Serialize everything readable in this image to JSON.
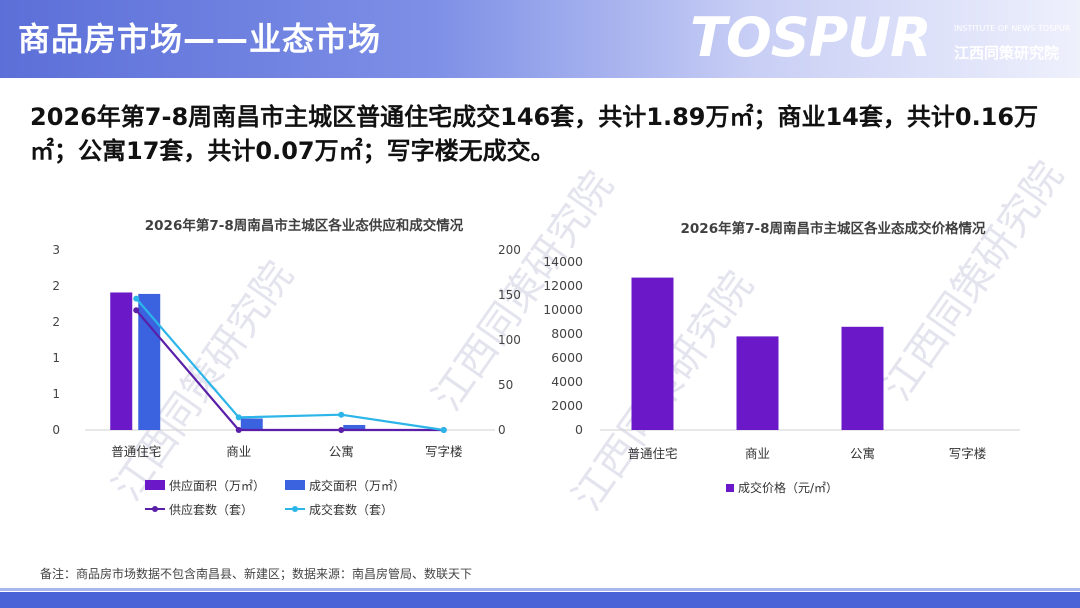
{
  "header": {
    "title": "商品房市场——业态市场",
    "logo_text": "TOSPUR",
    "logo_en": "INSTITUTE OF NEWS TOSPUR",
    "logo_cn": "江西同策研究院"
  },
  "headline": "2026年第7-8周南昌市主城区普通住宅成交146套，共计1.89万㎡；商业14套，共计0.16万㎡；公寓17套，共计0.07万㎡；写字楼无成交。",
  "footnote": "备注：商品房市场数据不包含南昌县、新建区；数据来源：南昌房管局、数联天下",
  "colors": {
    "supply_area": "#6a18c8",
    "deal_area": "#3b63e0",
    "supply_count": "#5a1fa8",
    "deal_count": "#2bb5e8",
    "price": "#6a18c8"
  },
  "chart_data": [
    {
      "type": "bar",
      "title": "2026年第7-8周南昌市主城区各业态供应和成交情况",
      "categories": [
        "普通住宅",
        "商业",
        "公寓",
        "写字楼"
      ],
      "y_left_ticks": [
        "0",
        "1",
        "1",
        "2",
        "2",
        "3"
      ],
      "y_left_range": [
        0,
        2.5
      ],
      "y_right_ticks": [
        "0",
        "50",
        "100",
        "150",
        "200"
      ],
      "y_right_range": [
        0,
        200
      ],
      "series": [
        {
          "name": "供应面积（万㎡）",
          "kind": "bar",
          "axis": "left",
          "values": [
            1.91,
            0,
            0,
            0
          ]
        },
        {
          "name": "成交面积（万㎡）",
          "kind": "bar",
          "axis": "left",
          "values": [
            1.89,
            0.16,
            0.07,
            0
          ]
        },
        {
          "name": "供应套数（套）",
          "kind": "line",
          "axis": "right",
          "values": [
            133,
            0,
            0,
            0
          ]
        },
        {
          "name": "成交套数（套）",
          "kind": "line",
          "axis": "right",
          "values": [
            146,
            14,
            17,
            0
          ]
        }
      ]
    },
    {
      "type": "bar",
      "title": "2026年第7-8周南昌市主城区各业态成交价格情况",
      "categories": [
        "普通住宅",
        "商业",
        "公寓",
        "写字楼"
      ],
      "y_ticks": [
        "0",
        "2000",
        "4000",
        "6000",
        "8000",
        "10000",
        "12000",
        "14000"
      ],
      "ylim": [
        0,
        14000
      ],
      "series": [
        {
          "name": "成交价格（元/㎡）",
          "values": [
            12700,
            7800,
            8600,
            0
          ]
        }
      ]
    }
  ]
}
